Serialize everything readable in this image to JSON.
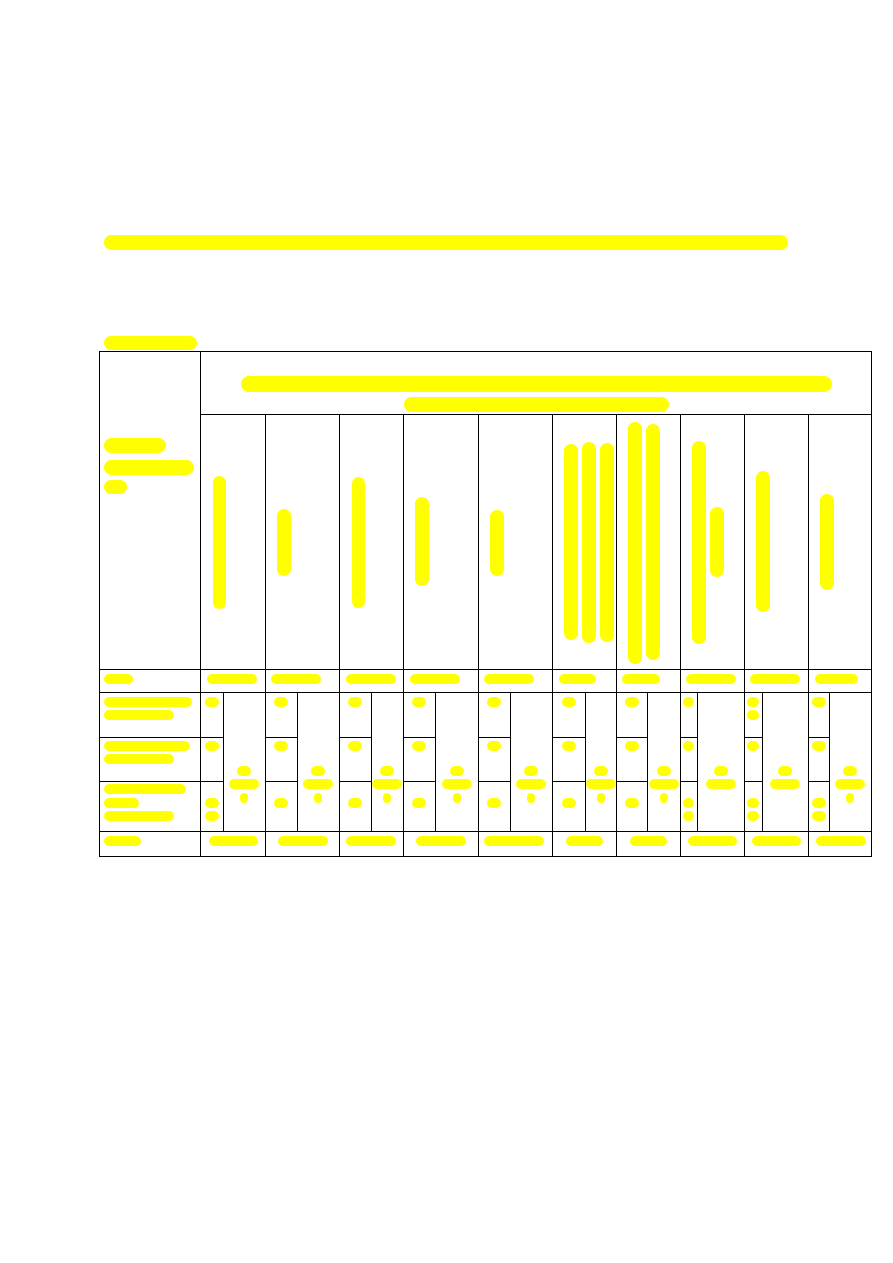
{
  "document": {
    "content_state": "redacted",
    "colors": {
      "redaction": "#ffff00",
      "table_border": "#000000",
      "background": "#ffffff"
    }
  }
}
